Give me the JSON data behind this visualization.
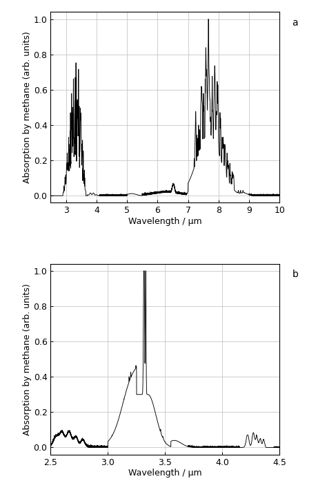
{
  "panel_a": {
    "xlim": [
      2.5,
      10.0
    ],
    "ylim": [
      -0.04,
      1.04
    ],
    "xticks": [
      3,
      4,
      5,
      6,
      7,
      8,
      9,
      10
    ],
    "yticks": [
      0.0,
      0.2,
      0.4,
      0.6,
      0.8,
      1.0
    ],
    "xlabel": "Wavelength / µm",
    "ylabel": "Absorption by methane (arb. units)",
    "label": "a"
  },
  "panel_b": {
    "xlim": [
      2.5,
      4.5
    ],
    "ylim": [
      -0.04,
      1.04
    ],
    "xticks": [
      2.5,
      3.0,
      3.5,
      4.0,
      4.5
    ],
    "yticks": [
      0.0,
      0.2,
      0.4,
      0.6,
      0.8,
      1.0
    ],
    "xlabel": "Wavelength / µm",
    "ylabel": "Absorption by methane (arb. units)",
    "label": "b"
  },
  "line_color": "#000000",
  "line_width": 0.65,
  "grid_color": "#bbbbbb",
  "background_color": "#ffffff",
  "tick_fontsize": 9,
  "axis_label_fontsize": 9
}
